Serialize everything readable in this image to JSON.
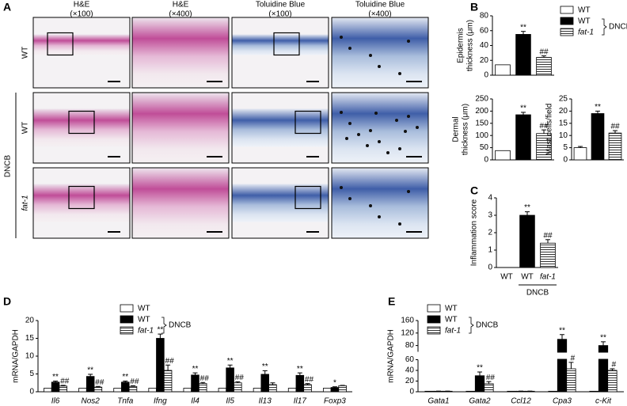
{
  "panel_labels": [
    "A",
    "B",
    "C",
    "D",
    "E"
  ],
  "panel_a": {
    "columns": [
      [
        "H&E",
        "(×100)"
      ],
      [
        "H&E",
        "(×400)"
      ],
      [
        "Toluidine Blue",
        "(×100)"
      ],
      [
        "Toluidine Blue",
        "(×400)"
      ]
    ],
    "rows": [
      "WT",
      "WT",
      "fat-1"
    ],
    "group_label": "DNCB"
  },
  "chart_data": [
    {
      "type": "bar",
      "y_label": [
        "Epidermis",
        "thickness (μm)"
      ],
      "values": [
        14,
        55,
        24
      ],
      "errors": [
        null,
        4,
        2
      ],
      "sig": [
        null,
        "**",
        "##"
      ],
      "bar_styles": [
        "white",
        "black",
        "hatch"
      ],
      "ylim": [
        0,
        80
      ],
      "yticks": [
        0,
        20,
        40,
        60,
        80
      ],
      "legend": [
        "WT",
        "WT",
        "fat-1"
      ],
      "legend_group": "DNCB"
    },
    {
      "type": "bar",
      "y_label": [
        "Dermal",
        "thickness (μm)"
      ],
      "values": [
        38,
        185,
        108
      ],
      "errors": [
        null,
        10,
        15
      ],
      "sig": [
        null,
        "**",
        "##"
      ],
      "bar_styles": [
        "white",
        "black",
        "hatch"
      ],
      "ylim": [
        0,
        250
      ],
      "yticks": [
        0,
        50,
        100,
        150,
        200,
        250
      ]
    },
    {
      "type": "bar",
      "y_label": [
        "Mast cells/field"
      ],
      "values": [
        5,
        19,
        11
      ],
      "errors": [
        0.5,
        1,
        1
      ],
      "sig": [
        null,
        "**",
        "##"
      ],
      "bar_styles": [
        "white",
        "black",
        "hatch"
      ],
      "ylim": [
        0,
        25
      ],
      "yticks": [
        0,
        5,
        10,
        15,
        20,
        25
      ]
    },
    {
      "type": "bar",
      "y_label": [
        "Inflammation score"
      ],
      "categories": [
        "WT",
        "WT",
        "fat-1"
      ],
      "values": [
        0,
        3,
        1.4
      ],
      "errors": [
        null,
        0.2,
        0.2
      ],
      "sig": [
        null,
        "**",
        "##"
      ],
      "bar_styles": [
        "white",
        "black",
        "hatch"
      ],
      "ylim": [
        0,
        4
      ],
      "yticks": [
        0,
        1,
        2,
        3,
        4
      ],
      "category_group": "DNCB"
    },
    {
      "type": "grouped_bar",
      "y_label": [
        "mRNA/GAPDH"
      ],
      "categories": [
        "Il6",
        "Nos2",
        "Tnfa",
        "Ifng",
        "Il4",
        "Il5",
        "Il13",
        "Il17",
        "Foxp3"
      ],
      "ylim": [
        0,
        20
      ],
      "yticks": [
        0,
        5,
        10,
        15,
        20
      ],
      "legend_group": "DNCB",
      "series": [
        {
          "name": "WT",
          "style": "white",
          "values": [
            1,
            1,
            1,
            1,
            1,
            1,
            1,
            1,
            1
          ]
        },
        {
          "name": "WT",
          "style": "black",
          "values": [
            2.7,
            4.3,
            2.7,
            15,
            4.7,
            6.7,
            4.9,
            4.6,
            1.2
          ],
          "errors": [
            0.3,
            0.6,
            0.3,
            1.2,
            0.6,
            0.8,
            1.0,
            0.7,
            0.2
          ],
          "sig": [
            "**",
            "**",
            "**",
            "**",
            "**",
            "**",
            "**",
            "**",
            "*"
          ]
        },
        {
          "name": "fat-1",
          "style": "hatch",
          "values": [
            1.6,
            1.3,
            1.5,
            6,
            2.3,
            2.5,
            2,
            2,
            1.7
          ],
          "errors": [
            0.2,
            0.2,
            0.2,
            1.5,
            0.3,
            0.3,
            0.5,
            0.3,
            0.1
          ],
          "sig": [
            "##",
            "##",
            "##",
            "##",
            "##",
            "##",
            null,
            "##",
            null
          ]
        }
      ]
    },
    {
      "type": "grouped_bar",
      "y_label": [
        "mRNA/GAPDH"
      ],
      "categories": [
        "Gata1",
        "Gata2",
        "Ccl12",
        "Cpa3",
        "c-Kit"
      ],
      "ylim": [
        0,
        160
      ],
      "yticks": [
        0,
        20,
        40,
        60,
        80,
        120,
        160
      ],
      "axis_break": 60,
      "legend_group": "DNCB",
      "series": [
        {
          "name": "WT",
          "style": "white",
          "values": [
            1,
            1,
            1,
            1,
            1
          ]
        },
        {
          "name": "WT",
          "style": "black",
          "values": [
            1,
            30,
            1,
            100,
            80
          ],
          "errors": [
            0.2,
            7,
            0.2,
            15,
            12
          ],
          "sig": [
            null,
            "**",
            null,
            "**",
            "**"
          ]
        },
        {
          "name": "fat-1",
          "style": "hatch",
          "values": [
            1,
            15,
            1,
            43,
            40
          ],
          "errors": [
            0.2,
            4,
            0.2,
            12,
            3
          ],
          "sig": [
            null,
            "##",
            null,
            "#",
            "#"
          ]
        }
      ]
    }
  ]
}
